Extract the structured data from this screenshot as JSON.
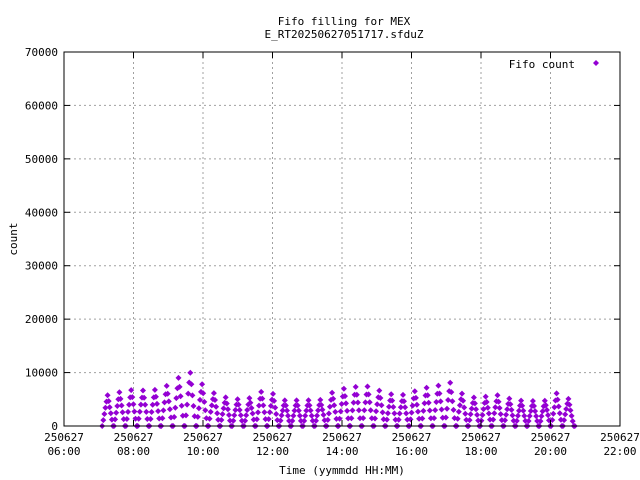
{
  "chart_data": {
    "type": "scatter",
    "title": "Fifo filling for MEX",
    "subtitle": "E_RT20250627051717.sfduZ",
    "xlabel": "Time (yymmdd HH:MM)",
    "ylabel": "count",
    "xlim": [
      6,
      22
    ],
    "ylim": [
      0,
      70000
    ],
    "grid": true,
    "legend_position": "top-right",
    "x_ticks": [
      {
        "value": 6,
        "date": "250627",
        "time": "06:00"
      },
      {
        "value": 8,
        "date": "250627",
        "time": "08:00"
      },
      {
        "value": 10,
        "date": "250627",
        "time": "10:00"
      },
      {
        "value": 12,
        "date": "250627",
        "time": "12:00"
      },
      {
        "value": 14,
        "date": "250627",
        "time": "14:00"
      },
      {
        "value": 16,
        "date": "250627",
        "time": "16:00"
      },
      {
        "value": 18,
        "date": "250627",
        "time": "18:00"
      },
      {
        "value": 20,
        "date": "250627",
        "time": "20:00"
      },
      {
        "value": 22,
        "date": "250627",
        "time": "22:00"
      }
    ],
    "y_ticks": [
      0,
      10000,
      20000,
      30000,
      40000,
      50000,
      60000,
      70000
    ],
    "series": [
      {
        "name": "Fifo count",
        "color": "#9400d3",
        "marker": "diamond",
        "x_range": [
          7.1,
          20.7
        ],
        "envelope": [
          [
            7.1,
            5500
          ],
          [
            7.5,
            6200
          ],
          [
            8.0,
            6800
          ],
          [
            8.5,
            6500
          ],
          [
            9.0,
            7600
          ],
          [
            9.4,
            9500
          ],
          [
            9.6,
            10200
          ],
          [
            9.9,
            8200
          ],
          [
            10.3,
            6200
          ],
          [
            10.8,
            5000
          ],
          [
            11.3,
            5000
          ],
          [
            11.5,
            6300
          ],
          [
            11.9,
            6500
          ],
          [
            12.3,
            4800
          ],
          [
            13.0,
            4800
          ],
          [
            13.4,
            4900
          ],
          [
            13.8,
            6600
          ],
          [
            14.3,
            7300
          ],
          [
            14.8,
            7400
          ],
          [
            15.3,
            6000
          ],
          [
            15.8,
            5800
          ],
          [
            16.3,
            7000
          ],
          [
            16.8,
            7600
          ],
          [
            17.1,
            8200
          ],
          [
            17.5,
            5800
          ],
          [
            18.0,
            5000
          ],
          [
            18.3,
            6100
          ],
          [
            18.6,
            5500
          ],
          [
            19.0,
            4800
          ],
          [
            19.8,
            4600
          ],
          [
            20.2,
            6200
          ],
          [
            20.4,
            5500
          ],
          [
            20.7,
            4400
          ]
        ]
      }
    ]
  }
}
